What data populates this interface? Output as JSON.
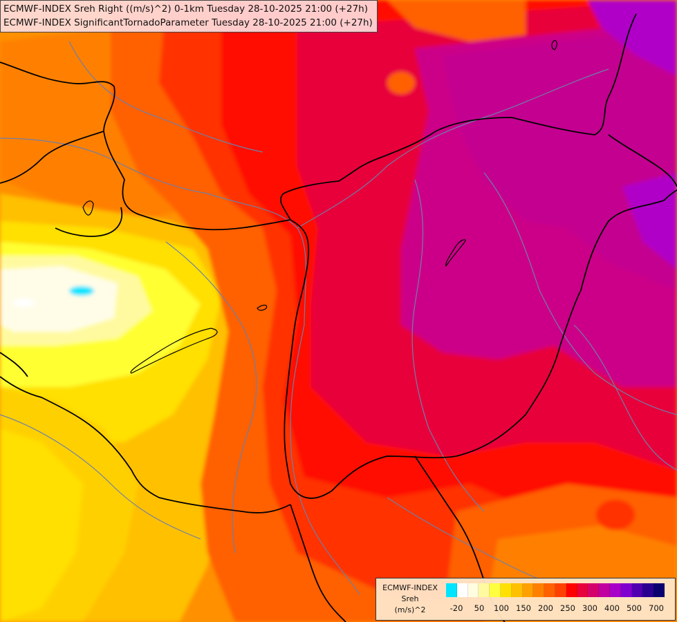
{
  "title": {
    "line1": "ECMWF-INDEX Sreh Right ((m/s)^2) 0-1km Tuesday 28-10-2025 21:00 (+27h)",
    "line2": "ECMWF-INDEX SignificantTornadoParameter Tuesday 28-10-2025 21:00 (+27h)"
  },
  "legend": {
    "source": "ECMWF-INDEX",
    "variable": "Sreh",
    "unit": "(m/s)^2",
    "colors": [
      "#00e5ff",
      "#ffffff",
      "#fffde0",
      "#fffaa0",
      "#ffff40",
      "#ffe000",
      "#ffc000",
      "#ffa000",
      "#ff8000",
      "#ff6000",
      "#ff4000",
      "#ff0000",
      "#e8003c",
      "#d4006c",
      "#c000a0",
      "#a800c8",
      "#8000d0",
      "#5000b0",
      "#2a0090",
      "#0a0070"
    ],
    "ticks": [
      "-20",
      "50",
      "100",
      "150",
      "200",
      "250",
      "300",
      "400",
      "500",
      "700"
    ]
  },
  "colors": {
    "white_zone": "#fffde8",
    "yellow_zone": "#ffff30",
    "orange_zone": "#ff9a00",
    "red_zone": "#ff1e00",
    "crimson_zone": "#e8003a",
    "magenta_zone": "#cc0088",
    "purple_zone": "#b000c8",
    "border_color": "#000000",
    "river_color": "#6f7fa8"
  }
}
